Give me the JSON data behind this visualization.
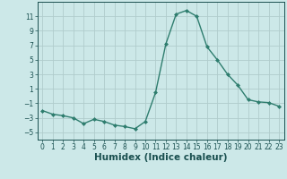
{
  "x": [
    0,
    1,
    2,
    3,
    4,
    5,
    6,
    7,
    8,
    9,
    10,
    11,
    12,
    13,
    14,
    15,
    16,
    17,
    18,
    19,
    20,
    21,
    22,
    23
  ],
  "y": [
    -2.0,
    -2.5,
    -2.7,
    -3.0,
    -3.8,
    -3.2,
    -3.5,
    -4.0,
    -4.2,
    -4.5,
    -3.5,
    0.5,
    7.2,
    11.3,
    11.8,
    11.0,
    6.8,
    5.0,
    3.0,
    1.5,
    -0.5,
    -0.8,
    -0.9,
    -1.4
  ],
  "line_color": "#2e7d6e",
  "marker": "D",
  "marker_size": 2.0,
  "xlabel": "Humidex (Indice chaleur)",
  "ylim": [
    -6,
    13
  ],
  "xlim": [
    -0.5,
    23.5
  ],
  "yticks": [
    -5,
    -3,
    -1,
    1,
    3,
    5,
    7,
    9,
    11
  ],
  "xticks": [
    0,
    1,
    2,
    3,
    4,
    5,
    6,
    7,
    8,
    9,
    10,
    11,
    12,
    13,
    14,
    15,
    16,
    17,
    18,
    19,
    20,
    21,
    22,
    23
  ],
  "bg_color": "#cce8e8",
  "grid_color": "#b0cccc",
  "tick_fontsize": 5.5,
  "xlabel_fontsize": 7.5,
  "linewidth": 1.0
}
